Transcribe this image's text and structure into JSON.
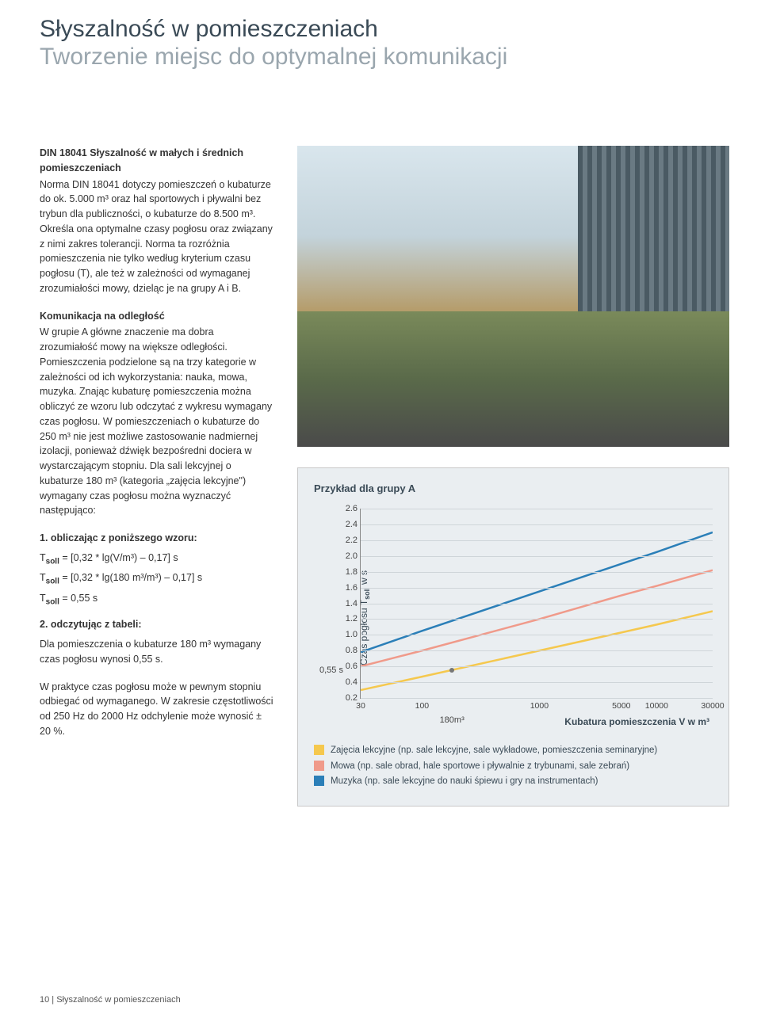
{
  "header": {
    "title_main": "Słyszalność w pomieszczeniach",
    "title_sub": "Tworzenie miejsc do optymalnej komunikacji"
  },
  "left": {
    "s1_title": "DIN 18041 Słyszalność w małych i średnich pomieszczeniach",
    "s1_body": "Norma DIN 18041 dotyczy pomieszczeń o kubaturze do ok. 5.000 m³ oraz hal sportowych i pływalni bez trybun dla publiczności, o kubaturze do 8.500 m³. Określa ona optymalne czasy pogłosu oraz związany z nimi zakres tolerancji. Norma ta rozróżnia pomieszczenia nie tylko według kryterium czasu pogłosu (T), ale też w zależności od wymaganej zrozumiałości mowy, dzieląc je na grupy A i B.",
    "s2_title": "Komunikacja na odległość",
    "s2_body": "W grupie A główne znaczenie ma dobra zrozumiałość mowy na większe odległości. Pomieszczenia podzielone są na trzy kategorie w zależności od ich wykorzystania: nauka, mowa, muzyka. Znając kubaturę pomieszczenia można obliczyć ze wzoru lub odczytać z wykresu wymagany czas pogłosu. W pomieszczeniach o kubaturze do 250 m³ nie jest możliwe zastosowanie nadmiernej izolacji, ponieważ dźwięk bezpośredni dociera w wystarczającym stopniu. Dla sali lekcyjnej o kubaturze 180 m³ (kategoria „zajęcia lekcyjne\") wymagany czas pogłosu można wyznaczyć następująco:",
    "step1_title": "1. obliczając z poniższego wzoru:",
    "formula1": "Tsoll = [0,32 * lg(V/m³) – 0,17] s",
    "formula2": "Tsoll = [0,32 * lg(180 m³/m³) – 0,17] s",
    "formula3": "Tsoll = 0,55 s",
    "step2_title": "2. odczytując z tabeli:",
    "step2_body": "Dla pomieszczenia o kubaturze 180 m³ wymagany czas pogłosu wynosi 0,55 s.",
    "tail": "W praktyce czas pogłosu może w pewnym stopniu odbiegać od wymaganego. W zakresie częstotliwości od 250 Hz do 2000 Hz odchylenie może wynosić ± 20 %."
  },
  "chart": {
    "title": "Przykład dla grupy A",
    "ylabel": "Czas pogłosu Tsoll w s",
    "xlabel": "Kubatura pomieszczenia V w m³",
    "y_min": 0.2,
    "y_max": 2.6,
    "y_ticks": [
      0.2,
      0.4,
      0.6,
      0.8,
      1.0,
      1.2,
      1.4,
      1.6,
      1.8,
      2.0,
      2.2,
      2.4,
      2.6
    ],
    "x_log_min": 30,
    "x_log_max": 30000,
    "x_ticks": [
      30,
      100,
      1000,
      5000,
      10000,
      30000
    ],
    "grid_color": "#cfd5d9",
    "background_color": "#eaeef1",
    "marker_label": "0,55 s",
    "marker_x": 180,
    "marker_y": 0.55,
    "marker_x_label": "180m³",
    "series": [
      {
        "name": "muzyka",
        "color": "#2b7fb8",
        "width": 2.5,
        "points": [
          [
            30,
            0.78
          ],
          [
            100,
            1.05
          ],
          [
            1000,
            1.55
          ],
          [
            5000,
            1.9
          ],
          [
            10000,
            2.05
          ],
          [
            30000,
            2.3
          ]
        ]
      },
      {
        "name": "mowa",
        "color": "#f09a8a",
        "width": 2.5,
        "points": [
          [
            30,
            0.6
          ],
          [
            100,
            0.8
          ],
          [
            1000,
            1.2
          ],
          [
            5000,
            1.5
          ],
          [
            10000,
            1.62
          ],
          [
            30000,
            1.82
          ]
        ]
      },
      {
        "name": "zajecia",
        "color": "#f5c84e",
        "width": 2.5,
        "points": [
          [
            30,
            0.3
          ],
          [
            100,
            0.47
          ],
          [
            1000,
            0.8
          ],
          [
            5000,
            1.03
          ],
          [
            10000,
            1.13
          ],
          [
            30000,
            1.3
          ]
        ]
      }
    ],
    "legend": [
      {
        "color": "#f5c84e",
        "label": "Zajęcia lekcyjne (np. sale lekcyjne, sale wykładowe, pomieszczenia seminaryjne)"
      },
      {
        "color": "#f09a8a",
        "label": "Mowa (np. sale obrad, hale sportowe i pływalnie z trybunami, sale zebrań)"
      },
      {
        "color": "#2b7fb8",
        "label": "Muzyka (np. sale lekcyjne do nauki śpiewu i gry na instrumentach)"
      }
    ]
  },
  "footer": "10 | Słyszalność w pomieszczeniach"
}
